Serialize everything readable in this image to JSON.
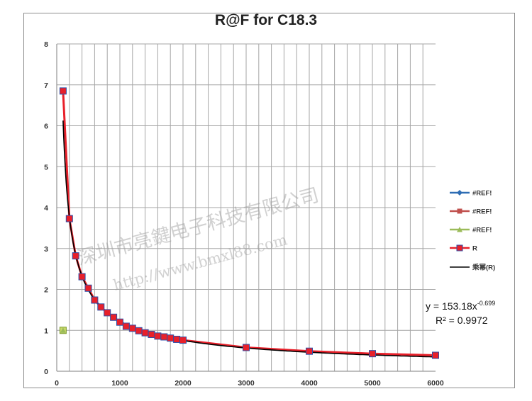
{
  "chart_data": {
    "type": "line",
    "title": "R@F  for C18.3",
    "xlabel": "",
    "ylabel": "",
    "xlim": [
      0,
      6000
    ],
    "ylim": [
      0,
      8
    ],
    "x_ticks": [
      "0",
      "1000",
      "2000",
      "3000",
      "4000",
      "5000",
      "6000"
    ],
    "y_ticks": [
      "0",
      "1",
      "2",
      "3",
      "4",
      "5",
      "6",
      "7",
      "8"
    ],
    "grid": true,
    "legend_position": "right",
    "series": [
      {
        "name": "#REF!",
        "color": "#2e6db4",
        "marker": "diamond",
        "x": [],
        "y": []
      },
      {
        "name": "#REF!",
        "color": "#c0504d",
        "marker": "square",
        "x": [],
        "y": []
      },
      {
        "name": "#REF!",
        "color": "#9bbb59",
        "marker": "triangle",
        "x": [
          100
        ],
        "y": [
          1.0
        ]
      },
      {
        "name": "R",
        "color": "#e8202a",
        "marker": "square-blue-fill",
        "x": [
          100,
          200,
          300,
          400,
          500,
          600,
          700,
          800,
          900,
          1000,
          1100,
          1200,
          1300,
          1400,
          1500,
          1600,
          1700,
          1800,
          1900,
          2000,
          3000,
          4000,
          5000,
          6000
        ],
        "y": [
          6.85,
          3.73,
          2.82,
          2.31,
          2.03,
          1.74,
          1.57,
          1.43,
          1.32,
          1.2,
          1.1,
          1.05,
          0.99,
          0.94,
          0.9,
          0.86,
          0.84,
          0.81,
          0.78,
          0.76,
          0.58,
          0.49,
          0.43,
          0.39
        ]
      },
      {
        "name": "乘幂(R)",
        "color": "#000000",
        "marker": "none",
        "type": "trendline"
      }
    ],
    "trendline": {
      "equation_base": "y = 153.18x",
      "equation_exponent": "-0.699",
      "r_squared": "R² = 0.9972",
      "coefficient": 153.18,
      "exponent": -0.699,
      "x_start": 100
    },
    "watermark": {
      "line1": "深圳市亮鍵电子科技有限公司",
      "line2": "http://www.bmxl88.com"
    }
  }
}
